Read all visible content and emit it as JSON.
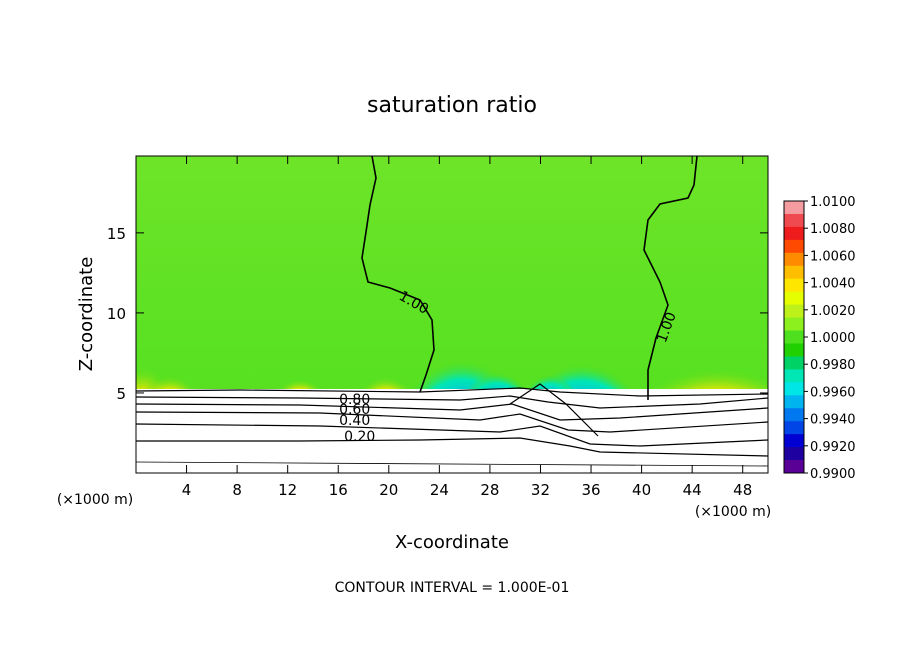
{
  "chart_data": {
    "type": "heatmap",
    "title": "saturation ratio",
    "xlabel": "X-coordinate",
    "ylabel": "Z-coordinate",
    "x_unit_left": "(×1000 m)",
    "x_unit_right": "(×1000 m)",
    "xlim": [
      0,
      50
    ],
    "ylim": [
      0,
      19.8
    ],
    "x_ticks": [
      4,
      8,
      12,
      16,
      20,
      24,
      28,
      32,
      36,
      40,
      44,
      48
    ],
    "y_ticks": [
      5,
      10,
      15
    ],
    "footer": "CONTOUR INTERVAL = 1.000E-01",
    "colorbar": {
      "min": 0.99,
      "max": 1.01,
      "labels": [
        "1.0100",
        "1.0080",
        "1.0060",
        "1.0040",
        "1.0020",
        "1.0000",
        "0.9980",
        "0.9960",
        "0.9940",
        "0.9920",
        "0.9900"
      ],
      "colors": [
        "#f49ca0",
        "#ef4a50",
        "#ee1c1c",
        "#ff4a00",
        "#ff8c00",
        "#ffbe00",
        "#ffe600",
        "#e6ff00",
        "#bef01a",
        "#8cf01e",
        "#4ee01e",
        "#20d000",
        "#00d266",
        "#00e6b4",
        "#00e6e6",
        "#00b4f0",
        "#0078f0",
        "#0046e6",
        "#0000d2",
        "#1e00a0",
        "#5a0096"
      ]
    },
    "contour_labels": [
      {
        "text": "1.00",
        "x": 21.8,
        "y": 10.4
      },
      {
        "text": "1.00",
        "x": 42.3,
        "y": 9.0
      },
      {
        "text": "0.80",
        "x": 17.3,
        "y": 4.3
      },
      {
        "text": "0.60",
        "x": 17.3,
        "y": 3.7
      },
      {
        "text": "0.40",
        "x": 17.3,
        "y": 3.0
      },
      {
        "text": "0.20",
        "x": 17.7,
        "y": 2.0
      }
    ]
  }
}
